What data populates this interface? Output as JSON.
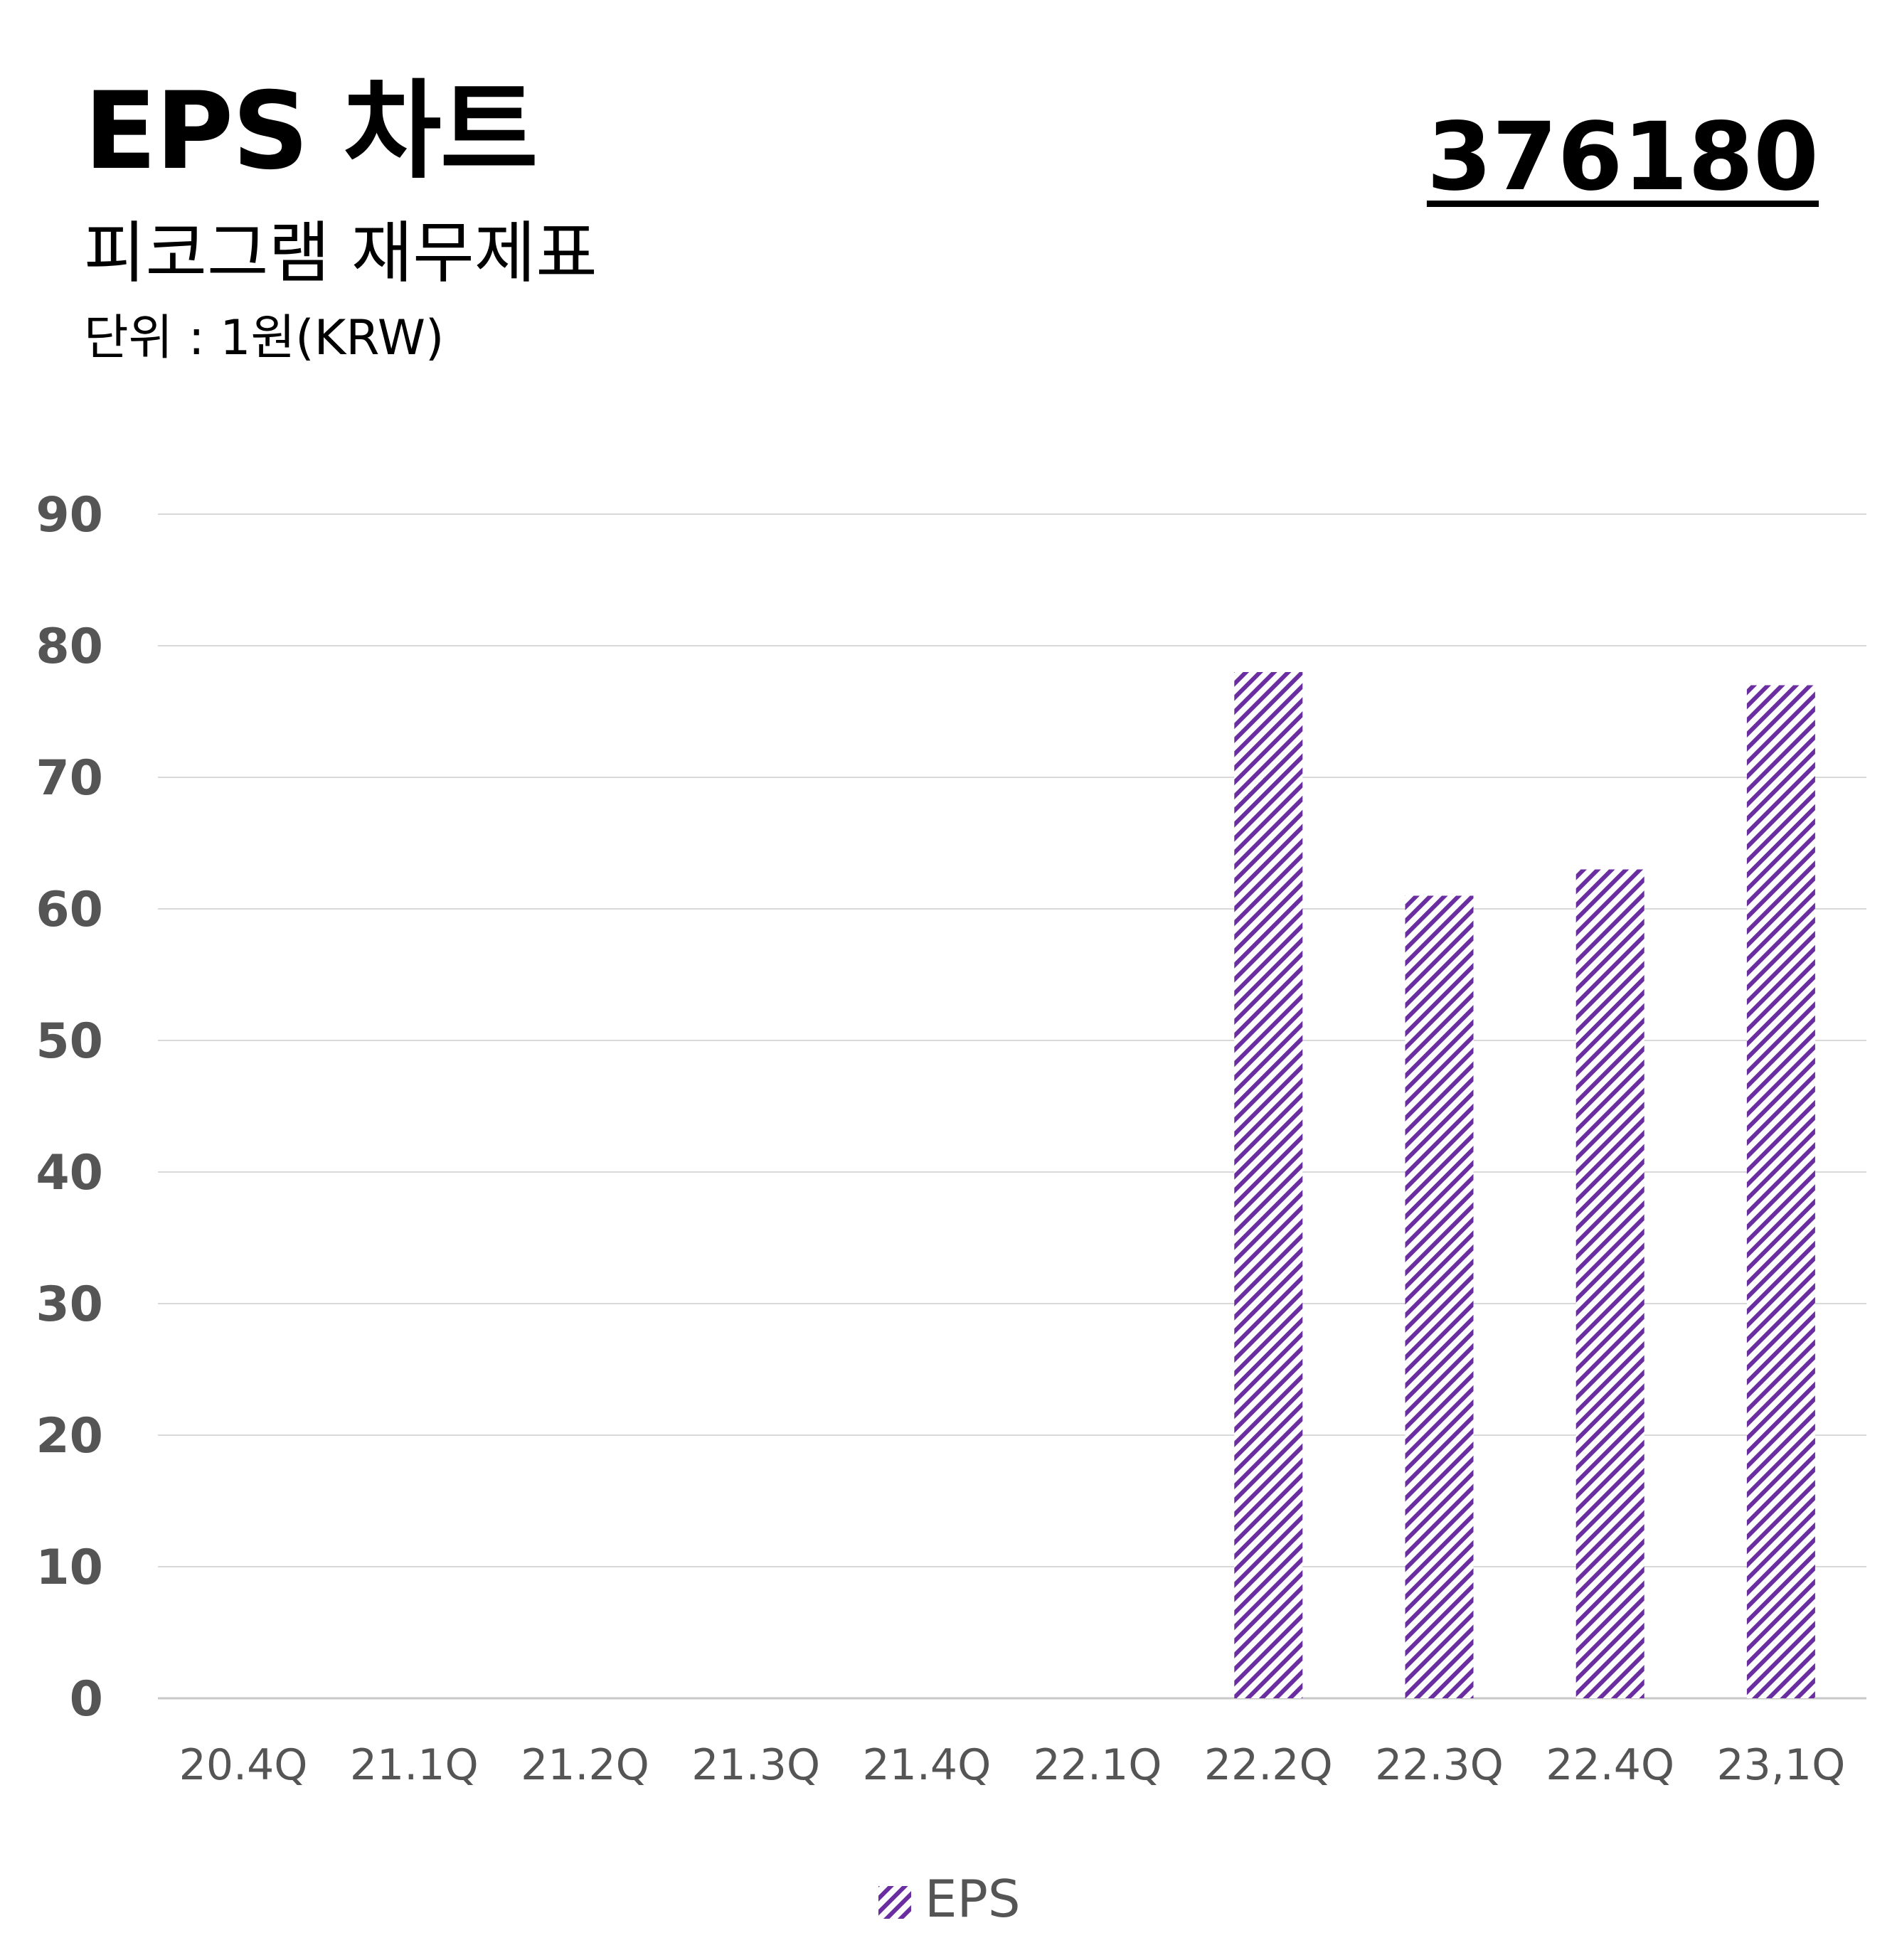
{
  "header": {
    "title": "EPS 차트",
    "subtitle": "피코그램 재무제표",
    "unit": "단위 : 1원(KRW)",
    "code": "376180"
  },
  "colors": {
    "bar_hatch": "#6a2ea0",
    "grid": "#d9d9d9",
    "axis_text": "#555555"
  },
  "chart_data": {
    "type": "bar",
    "categories": [
      "20.4Q",
      "21.1Q",
      "21.2Q",
      "21.3Q",
      "21.4Q",
      "22.1Q",
      "22.2Q",
      "22.3Q",
      "22.4Q",
      "23,1Q"
    ],
    "series": [
      {
        "name": "EPS",
        "values": [
          0,
          0,
          0,
          0,
          0,
          0,
          78,
          61,
          63,
          77
        ]
      }
    ],
    "ylim": [
      0,
      90
    ],
    "yticks": [
      0,
      10,
      20,
      30,
      40,
      50,
      60,
      70,
      80,
      90
    ],
    "grid": true,
    "legend": "bottom-center",
    "fill": "diagonal-hatch"
  }
}
